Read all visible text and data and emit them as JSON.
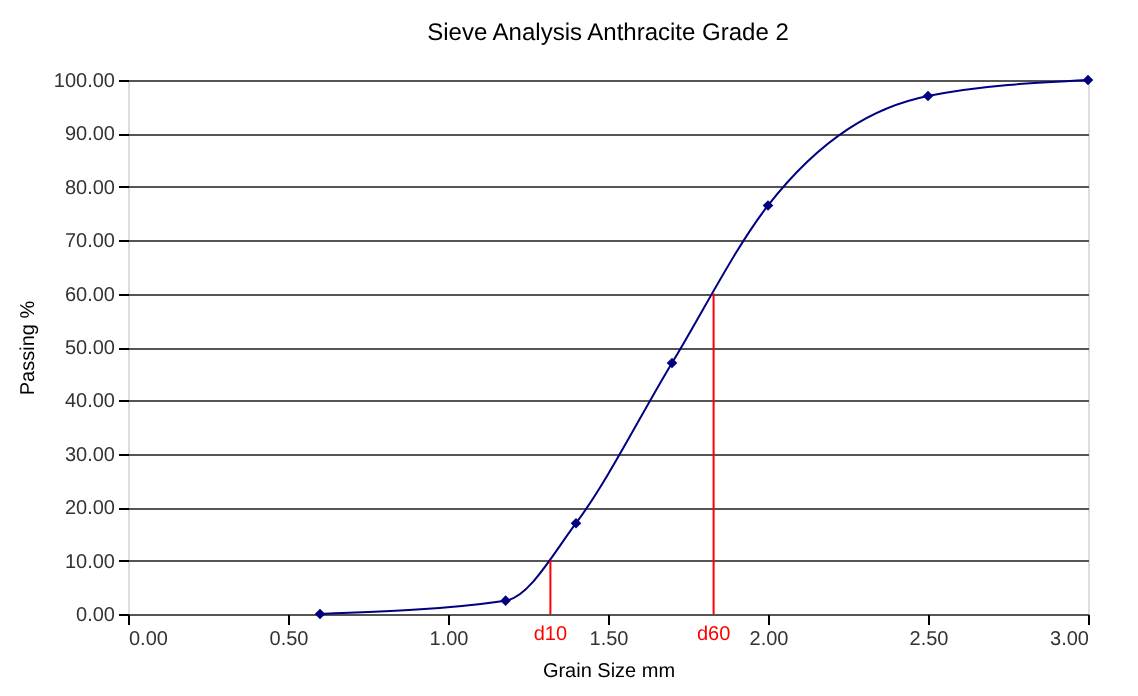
{
  "chart_data": {
    "type": "line",
    "title": "Sieve Analysis Anthracite Grade 2",
    "xlabel": "Grain Size mm",
    "ylabel": "Passing %",
    "xlim": [
      0,
      3
    ],
    "ylim": [
      0,
      100
    ],
    "xticks": [
      {
        "value": 0,
        "label": "0.00"
      },
      {
        "value": 0.5,
        "label": "0.50"
      },
      {
        "value": 1,
        "label": "1.00"
      },
      {
        "value": 1.5,
        "label": "1.50"
      },
      {
        "value": 2,
        "label": "2.00"
      },
      {
        "value": 2.5,
        "label": "2.50"
      },
      {
        "value": 3,
        "label": "3.00"
      }
    ],
    "yticks": [
      {
        "value": 0,
        "label": "0.00"
      },
      {
        "value": 10,
        "label": "10.00"
      },
      {
        "value": 20,
        "label": "20.00"
      },
      {
        "value": 30,
        "label": "30.00"
      },
      {
        "value": 40,
        "label": "40.00"
      },
      {
        "value": 50,
        "label": "50.00"
      },
      {
        "value": 60,
        "label": "60.00"
      },
      {
        "value": 70,
        "label": "70.00"
      },
      {
        "value": 80,
        "label": "80.00"
      },
      {
        "value": 90,
        "label": "90.00"
      },
      {
        "value": 100,
        "label": "100.00"
      }
    ],
    "grid": "y",
    "legend": false,
    "series": [
      {
        "color": "#000080",
        "marker": "diamond",
        "x": [
          0.6,
          1.18,
          1.4,
          1.7,
          2.0,
          2.5,
          3.0
        ],
        "values": [
          0,
          2.5,
          17,
          47,
          76.5,
          97,
          100
        ]
      },
      {
        "color": "#ff0000",
        "marker": "none",
        "x": [
          1.32,
          1.32
        ],
        "values": [
          0,
          10
        ]
      },
      {
        "color": "#ff0000",
        "marker": "none",
        "x": [
          1.83,
          1.83
        ],
        "values": [
          0,
          60
        ]
      }
    ],
    "annotations": [
      "d10",
      "d60"
    ]
  }
}
